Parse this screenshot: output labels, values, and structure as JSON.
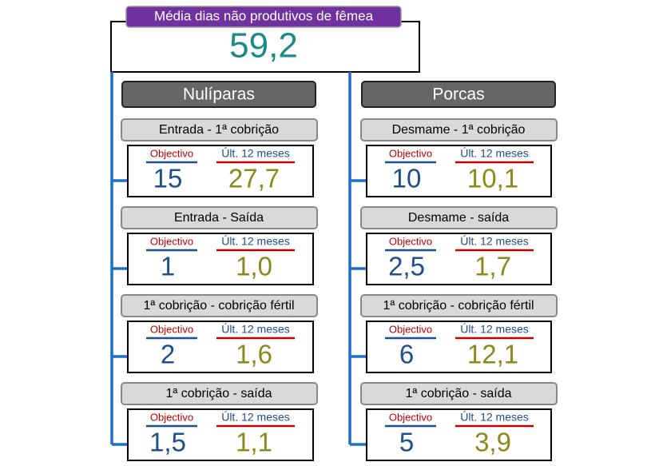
{
  "title": "Média dias não produtivos de fêmea",
  "total": "59,2",
  "columns": [
    {
      "title": "Nulíparas",
      "items": [
        {
          "label": "Entrada - 1ª cobrição",
          "target_label": "Objectivo",
          "target": "15",
          "last_label": "Últ. 12 meses",
          "last": "27,7"
        },
        {
          "label": "Entrada - Saída",
          "target_label": "Objectivo",
          "target": "1",
          "last_label": "Últ. 12 meses",
          "last": "1,0"
        },
        {
          "label": "1ª cobrição - cobrição fértil",
          "target_label": "Objectivo",
          "target": "2",
          "last_label": "Últ. 12 meses",
          "last": "1,6"
        },
        {
          "label": "1ª cobrição - saída",
          "target_label": "Objectivo",
          "target": "1,5",
          "last_label": "Últ. 12 meses",
          "last": "1,1"
        }
      ]
    },
    {
      "title": "Porcas",
      "items": [
        {
          "label": "Desmame - 1ª cobrição",
          "target_label": "Objectivo",
          "target": "10",
          "last_label": "Últ. 12 meses",
          "last": "10,1"
        },
        {
          "label": "Desmame - saída",
          "target_label": "Objectivo",
          "target": "2,5",
          "last_label": "Últ. 12 meses",
          "last": "1,7"
        },
        {
          "label": "1ª cobrição - cobrição fértil",
          "target_label": "Objectivo",
          "target": "6",
          "last_label": "Últ. 12 meses",
          "last": "12,1"
        },
        {
          "label": "1ª cobrição - saída",
          "target_label": "Objectivo",
          "target": "5",
          "last_label": "Últ. 12 meses",
          "last": "3,9"
        }
      ]
    }
  ]
}
